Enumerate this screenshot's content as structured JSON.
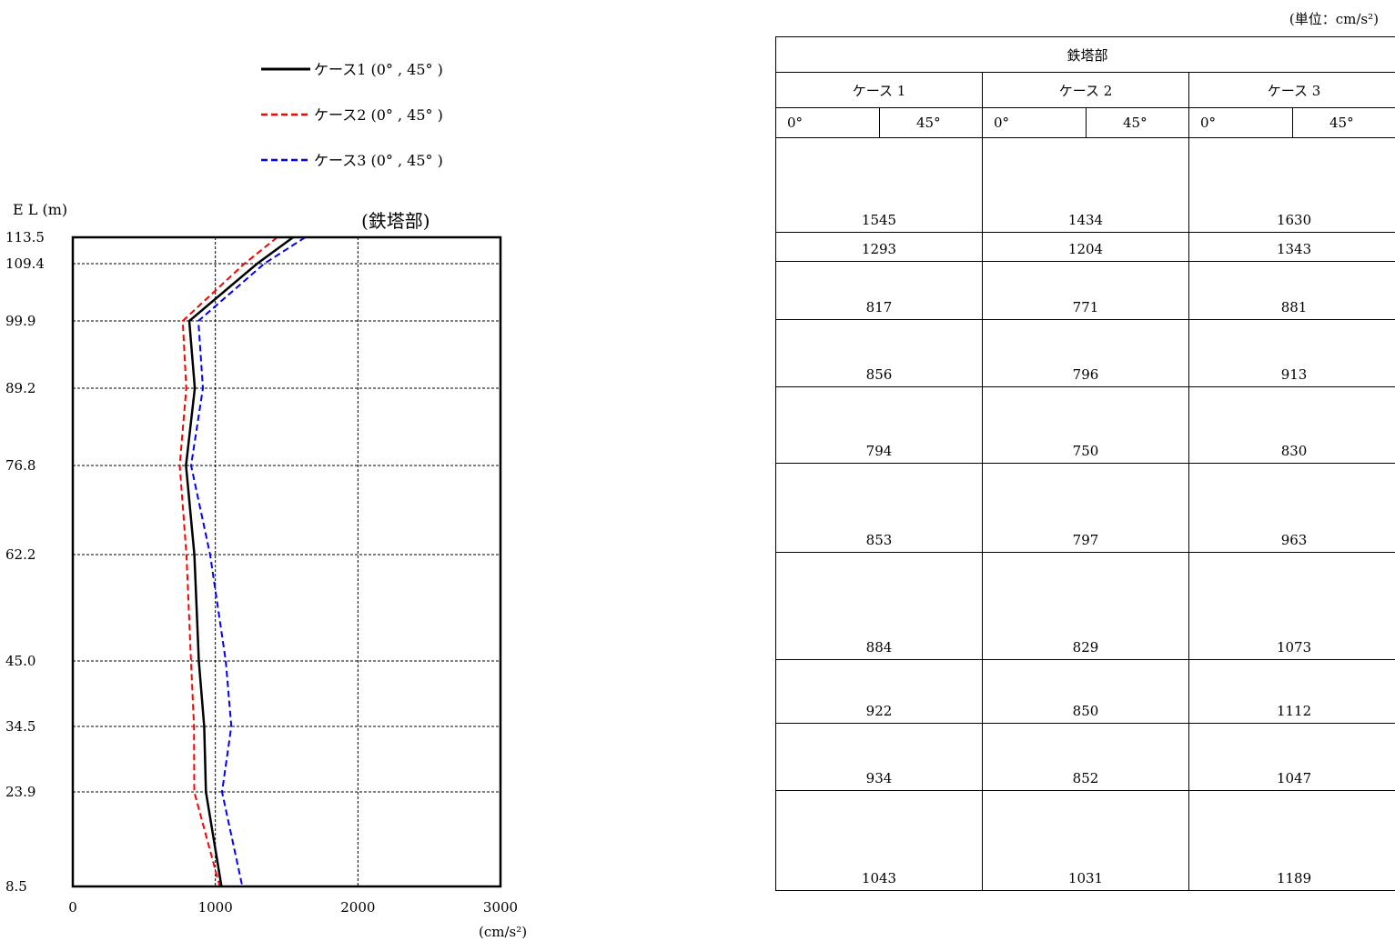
{
  "unit_label": "(単位：cm/s²)",
  "chart_data": {
    "type": "line",
    "title": "(鉄塔部)",
    "ylabel": "E L (m)",
    "xlabel": "(cm/s²)",
    "xlim": [
      0,
      3000
    ],
    "xticks": [
      0,
      1000,
      2000,
      3000
    ],
    "y_levels": [
      113.5,
      109.4,
      99.9,
      89.2,
      76.8,
      62.2,
      45.0,
      34.5,
      23.9,
      8.5
    ],
    "y_tick_labels": [
      "113.5",
      "109.4",
      "99.9",
      "89.2",
      "76.8",
      "62.2",
      "45.0",
      "34.5",
      "23.9",
      "8.5"
    ],
    "grid": true,
    "legend_position": "top-left",
    "series": [
      {
        "name": "ケース1 (0° , 45° )",
        "color": "#000000",
        "dash": "solid",
        "values": [
          1545,
          1293,
          817,
          856,
          794,
          853,
          884,
          922,
          934,
          1043
        ]
      },
      {
        "name": "ケース2 (0° , 45° )",
        "color": "#ff0000",
        "dash": "dashed",
        "values": [
          1434,
          1204,
          771,
          796,
          750,
          797,
          829,
          850,
          852,
          1031
        ]
      },
      {
        "name": "ケース3 (0° , 45° )",
        "color": "#0000ff",
        "dash": "dashed",
        "values": [
          1630,
          1343,
          881,
          913,
          830,
          963,
          1073,
          1112,
          1047,
          1189
        ]
      }
    ]
  },
  "table": {
    "title": "鉄塔部",
    "cases": [
      "ケース 1",
      "ケース 2",
      "ケース 3"
    ],
    "angles": [
      "0°",
      "45°"
    ],
    "rows": [
      [
        "1545",
        "1434",
        "1630"
      ],
      [
        "1293",
        "1204",
        "1343"
      ],
      [
        "817",
        "771",
        "881"
      ],
      [
        "856",
        "796",
        "913"
      ],
      [
        "794",
        "750",
        "830"
      ],
      [
        "853",
        "797",
        "963"
      ],
      [
        "884",
        "829",
        "1073"
      ],
      [
        "922",
        "850",
        "1112"
      ],
      [
        "934",
        "852",
        "1047"
      ],
      [
        "1043",
        "1031",
        "1189"
      ]
    ]
  }
}
